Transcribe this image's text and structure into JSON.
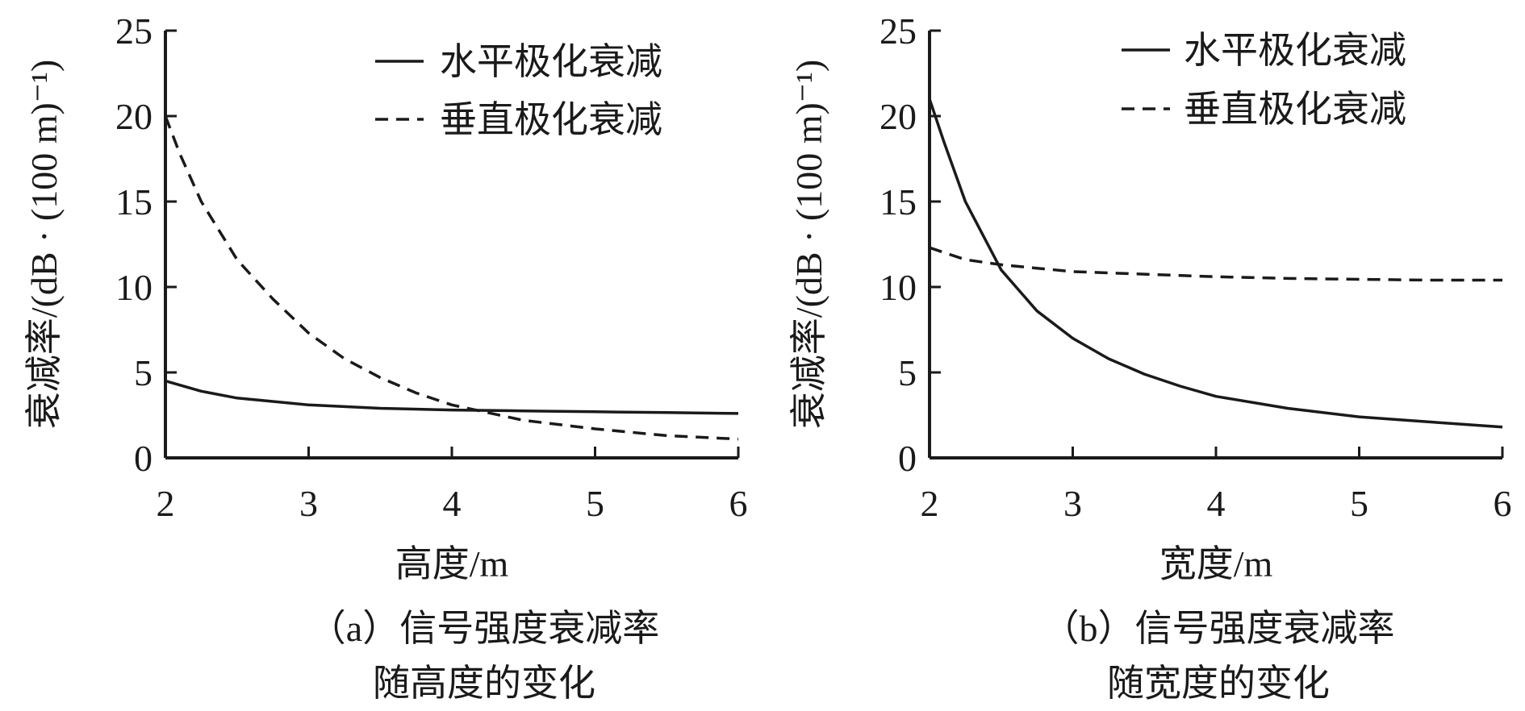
{
  "chart_data": [
    {
      "type": "line",
      "caption_lines": [
        "（a）信号强度衰减率",
        "随高度的变化"
      ],
      "xlabel": "高度/m",
      "ylabel": "衰减率/(dB · (100 m)⁻¹)",
      "xlim": [
        2,
        6
      ],
      "ylim": [
        0,
        25
      ],
      "x_ticks": [
        "2",
        "3",
        "4",
        "5",
        "6"
      ],
      "y_ticks": [
        "0",
        "5",
        "10",
        "15",
        "20",
        "25"
      ],
      "legend_position": "top-right",
      "series": [
        {
          "name": "水平极化衰减",
          "style": "solid",
          "x": [
            2,
            2.25,
            2.5,
            2.75,
            3,
            3.5,
            4,
            4.5,
            5,
            5.5,
            6
          ],
          "y": [
            4.5,
            3.9,
            3.5,
            3.3,
            3.1,
            2.9,
            2.8,
            2.75,
            2.7,
            2.65,
            2.6
          ]
        },
        {
          "name": "垂直极化衰减",
          "style": "dashed",
          "x": [
            2,
            2.1,
            2.25,
            2.5,
            2.75,
            3,
            3.25,
            3.5,
            3.75,
            4,
            4.5,
            5,
            5.5,
            6
          ],
          "y": [
            20,
            17.8,
            15,
            11.6,
            9.3,
            7.3,
            5.8,
            4.7,
            3.8,
            3.1,
            2.2,
            1.7,
            1.3,
            1.1
          ]
        }
      ]
    },
    {
      "type": "line",
      "caption_lines": [
        "（b）信号强度衰减率",
        "随宽度的变化"
      ],
      "xlabel": "宽度/m",
      "ylabel": "衰减率/(dB · (100 m)⁻¹)",
      "xlim": [
        2,
        6
      ],
      "ylim": [
        0,
        25
      ],
      "x_ticks": [
        "2",
        "3",
        "4",
        "5",
        "6"
      ],
      "y_ticks": [
        "0",
        "5",
        "10",
        "15",
        "20",
        "25"
      ],
      "legend_position": "top-right",
      "series": [
        {
          "name": "水平极化衰减",
          "style": "solid",
          "x": [
            2,
            2.1,
            2.25,
            2.5,
            2.75,
            3,
            3.25,
            3.5,
            3.75,
            4,
            4.5,
            5,
            5.5,
            6
          ],
          "y": [
            21,
            18.5,
            15,
            11,
            8.6,
            7.0,
            5.8,
            4.9,
            4.2,
            3.6,
            2.9,
            2.4,
            2.1,
            1.8
          ]
        },
        {
          "name": "垂直极化衰减",
          "style": "dashed",
          "x": [
            2,
            2.25,
            2.5,
            2.75,
            3,
            3.5,
            4,
            4.5,
            5,
            5.5,
            6
          ],
          "y": [
            12.3,
            11.6,
            11.3,
            11.1,
            10.9,
            10.75,
            10.6,
            10.5,
            10.45,
            10.4,
            10.4
          ]
        }
      ]
    }
  ]
}
